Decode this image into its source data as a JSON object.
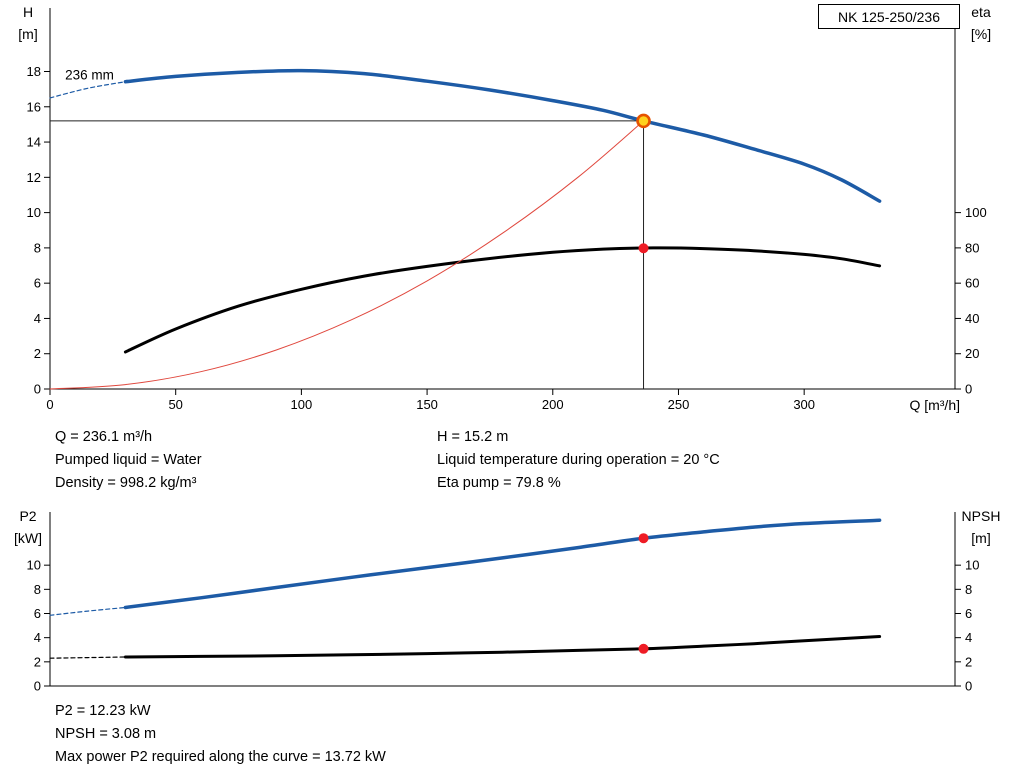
{
  "title_box": "NK 125-250/236",
  "colors": {
    "curve_blue": "#1d5ba6",
    "curve_black": "#000000",
    "system_curve_red": "#e0483e",
    "marker_red": "#ee1c25",
    "duty_ring_fill": "#ffd21e",
    "duty_ring_stroke": "#e65300",
    "crosshair": "#222222",
    "axis": "#000000"
  },
  "results_top": {
    "left": [
      "Q = 236.1 m³/h",
      "Pumped liquid = Water",
      "Density = 998.2 kg/m³"
    ],
    "right": [
      "H = 15.2 m",
      "Liquid temperature during operation = 20 °C",
      "Eta pump = 79.8 %"
    ]
  },
  "results_bottom": [
    "P2 = 12.23 kW",
    "NPSH = 3.08 m",
    "Max power P2 required along the curve = 13.72 kW"
  ],
  "chart_data": [
    {
      "name": "hq-eta-chart",
      "type": "line",
      "title": "NK 125-250/236",
      "xlabel": "Q [m³/h]",
      "ylabel_left": [
        "H",
        "[m]"
      ],
      "ylabel_right": [
        "eta",
        "[%]"
      ],
      "xlim": [
        0,
        360
      ],
      "ylim_left": [
        0,
        21.6
      ],
      "ylim_right": [
        0,
        216
      ],
      "grid": false,
      "x_ticks": [
        0,
        50,
        100,
        150,
        200,
        250,
        300
      ],
      "y_ticks_left": [
        0,
        2,
        4,
        6,
        8,
        10,
        12,
        14,
        16,
        18
      ],
      "y_ticks_right": [
        0,
        20,
        40,
        60,
        80,
        100
      ],
      "curve_label": {
        "text": "236 mm",
        "q": 6,
        "value": 17.55
      },
      "crosshair": {
        "q": 236.1,
        "value": 15.2
      },
      "series": [
        {
          "name": "head-curve-dashed",
          "axis": "left",
          "color": "#1d5ba6",
          "width": 1.2,
          "dash": "4 3",
          "points": [
            [
              0,
              16.5
            ],
            [
              15,
              17.05
            ],
            [
              30,
              17.42
            ]
          ]
        },
        {
          "name": "head-curve",
          "axis": "left",
          "color": "#1d5ba6",
          "width": 3.5,
          "points": [
            [
              30,
              17.42
            ],
            [
              50,
              17.72
            ],
            [
              75,
              17.95
            ],
            [
              100,
              18.05
            ],
            [
              125,
              17.88
            ],
            [
              150,
              17.45
            ],
            [
              175,
              16.95
            ],
            [
              200,
              16.35
            ],
            [
              220,
              15.8
            ],
            [
              236.1,
              15.2
            ],
            [
              260,
              14.4
            ],
            [
              280,
              13.6
            ],
            [
              300,
              12.75
            ],
            [
              315,
              11.85
            ],
            [
              330,
              10.65
            ]
          ]
        },
        {
          "name": "efficiency-curve",
          "axis": "right",
          "color": "#000000",
          "width": 3,
          "points": [
            [
              30,
              21
            ],
            [
              50,
              34
            ],
            [
              75,
              47
            ],
            [
              100,
              56.5
            ],
            [
              125,
              64
            ],
            [
              150,
              69.5
            ],
            [
              175,
              74
            ],
            [
              200,
              77.5
            ],
            [
              220,
              79.3
            ],
            [
              240,
              80
            ],
            [
              260,
              79.6
            ],
            [
              280,
              78.4
            ],
            [
              300,
              76.3
            ],
            [
              315,
              73.8
            ],
            [
              330,
              69.8
            ]
          ]
        },
        {
          "name": "system-curve",
          "axis": "left",
          "color": "#e0483e",
          "width": 1,
          "points": [
            [
              0,
              0
            ],
            [
              30,
              0.25
            ],
            [
              60,
              0.98
            ],
            [
              90,
              2.21
            ],
            [
              120,
              3.93
            ],
            [
              150,
              6.13
            ],
            [
              180,
              8.83
            ],
            [
              210,
              12.0
            ],
            [
              236.1,
              15.2
            ]
          ]
        }
      ],
      "markers": [
        {
          "name": "duty-point-marker",
          "type": "ring",
          "axis": "left",
          "q": 236.1,
          "value": 15.2
        },
        {
          "name": "eta-point-marker",
          "type": "dot",
          "axis": "right",
          "q": 236.1,
          "value": 79.8
        }
      ]
    },
    {
      "name": "p2-npsh-chart",
      "type": "line",
      "title": "",
      "xlabel": "",
      "ylabel_left": [
        "P2",
        "[kW]"
      ],
      "ylabel_right": [
        "NPSH",
        "[m]"
      ],
      "xlim": [
        0,
        360
      ],
      "ylim_left": [
        0,
        14.4
      ],
      "ylim_right": [
        0,
        14.4
      ],
      "grid": false,
      "x_ticks": [],
      "y_ticks_left": [
        0,
        2,
        4,
        6,
        8,
        10
      ],
      "y_ticks_right": [
        0,
        2,
        4,
        6,
        8,
        10
      ],
      "series": [
        {
          "name": "p2-curve-dashed",
          "axis": "left",
          "color": "#1d5ba6",
          "width": 1.2,
          "dash": "4 3",
          "points": [
            [
              0,
              5.85
            ],
            [
              15,
              6.2
            ],
            [
              30,
              6.5
            ]
          ]
        },
        {
          "name": "p2-curve",
          "axis": "left",
          "color": "#1d5ba6",
          "width": 3.5,
          "points": [
            [
              30,
              6.5
            ],
            [
              60,
              7.3
            ],
            [
              90,
              8.15
            ],
            [
              120,
              9.0
            ],
            [
              150,
              9.8
            ],
            [
              180,
              10.6
            ],
            [
              210,
              11.45
            ],
            [
              236.1,
              12.23
            ],
            [
              260,
              12.75
            ],
            [
              280,
              13.15
            ],
            [
              300,
              13.45
            ],
            [
              330,
              13.72
            ]
          ]
        },
        {
          "name": "npsh-curve-dashed",
          "axis": "right",
          "color": "#000000",
          "width": 1.2,
          "dash": "4 3",
          "points": [
            [
              0,
              2.3
            ],
            [
              15,
              2.35
            ],
            [
              30,
              2.4
            ]
          ]
        },
        {
          "name": "npsh-curve",
          "axis": "right",
          "color": "#000000",
          "width": 3,
          "points": [
            [
              30,
              2.4
            ],
            [
              60,
              2.45
            ],
            [
              90,
              2.5
            ],
            [
              120,
              2.58
            ],
            [
              150,
              2.68
            ],
            [
              180,
              2.8
            ],
            [
              210,
              2.95
            ],
            [
              236.1,
              3.08
            ],
            [
              260,
              3.3
            ],
            [
              280,
              3.5
            ],
            [
              300,
              3.75
            ],
            [
              330,
              4.1
            ]
          ]
        }
      ],
      "markers": [
        {
          "name": "p2-point-marker",
          "type": "dot",
          "axis": "left",
          "q": 236.1,
          "value": 12.23
        },
        {
          "name": "npsh-point-marker",
          "type": "dot",
          "axis": "right",
          "q": 236.1,
          "value": 3.08
        }
      ]
    }
  ]
}
